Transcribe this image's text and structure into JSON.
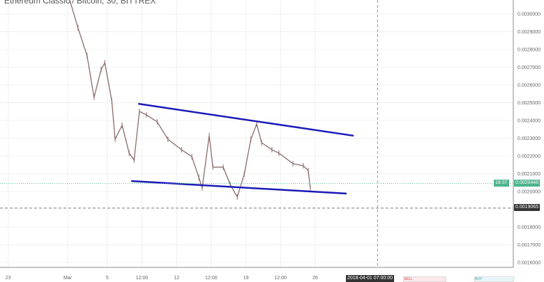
{
  "title": "Ethereum Classic / Bitcoin, 30, BITTREX",
  "chart_data": {
    "type": "candlestick",
    "title": "Ethereum Classic / Bitcoin, 30, BITTREX",
    "ylim": [
      0.00155,
      0.00308
    ],
    "y_ticks": [
      "0.0030000",
      "0.0029000",
      "0.0028000",
      "0.0027000",
      "0.0026000",
      "0.0025000",
      "0.0024000",
      "0.0023000",
      "0.0022000",
      "0.0021000",
      "0.0020000",
      "0.0018000",
      "0.0017000",
      "0.0016000"
    ],
    "x_ticks": [
      {
        "label": "23",
        "t": "2018-02-23T00:00"
      },
      {
        "label": "Mar",
        "t": "2018-03-01T00:00"
      },
      {
        "label": "5",
        "t": "2018-03-05T00:00"
      },
      {
        "label": "12:00",
        "t": "2018-03-08T12:00"
      },
      {
        "label": "12",
        "t": "2018-03-12T00:00"
      },
      {
        "label": "12:00",
        "t": "2018-03-15T12:00"
      },
      {
        "label": "19",
        "t": "2018-03-19T00:00"
      },
      {
        "label": "12:00",
        "t": "2018-03-22T12:00"
      },
      {
        "label": "26",
        "t": "2018-03-26T00:00"
      }
    ],
    "grid": true,
    "series": [
      {
        "color": "#8a6b6b",
        "points": [
          [
            "2018-03-01T05:00",
            0.003078
          ],
          [
            "2018-03-02T01:00",
            0.002922
          ],
          [
            "2018-03-02T23:00",
            0.002765
          ],
          [
            "2018-03-03T16:00",
            0.00253
          ],
          [
            "2018-03-04T09:00",
            0.002686
          ],
          [
            "2018-03-04T18:00",
            0.002725
          ],
          [
            "2018-03-05T11:00",
            0.00251
          ],
          [
            "2018-03-05T19:00",
            0.002294
          ],
          [
            "2018-03-06T12:00",
            0.002373
          ],
          [
            "2018-03-07T05:00",
            0.002216
          ],
          [
            "2018-03-07T17:00",
            0.002177
          ],
          [
            "2018-03-08T06:00",
            0.002451
          ],
          [
            "2018-03-08T23:00",
            0.002431
          ],
          [
            "2018-03-10T01:00",
            0.002392
          ],
          [
            "2018-03-11T03:00",
            0.002294
          ],
          [
            "2018-03-12T12:00",
            0.002235
          ],
          [
            "2018-03-13T13:00",
            0.002196
          ],
          [
            "2018-03-14T06:00",
            0.002078
          ],
          [
            "2018-03-14T14:00",
            0.00202
          ],
          [
            "2018-03-15T07:00",
            0.002314
          ],
          [
            "2018-03-15T16:00",
            0.002137
          ],
          [
            "2018-03-16T17:00",
            0.002137
          ],
          [
            "2018-03-17T10:00",
            0.002039
          ],
          [
            "2018-03-18T03:00",
            0.001969
          ],
          [
            "2018-03-18T20:00",
            0.002098
          ],
          [
            "2018-03-19T12:00",
            0.002294
          ],
          [
            "2018-03-20T02:00",
            0.00238
          ],
          [
            "2018-03-20T14:00",
            0.002275
          ],
          [
            "2018-03-21T15:00",
            0.002235
          ],
          [
            "2018-03-22T08:00",
            0.002216
          ],
          [
            "2018-03-23T18:00",
            0.002157
          ],
          [
            "2018-03-24T19:00",
            0.002145
          ],
          [
            "2018-03-25T07:00",
            0.002118
          ],
          [
            "2018-03-25T12:00",
            0.00202
          ]
        ]
      }
    ],
    "trendlines": [
      {
        "color": "#1a1ab8",
        "from": [
          "2018-03-08T03:00",
          0.002494
        ],
        "to": [
          "2018-03-29T21:00",
          0.002314
        ]
      },
      {
        "color": "#1a1ab8",
        "from": [
          "2018-03-07T10:00",
          0.002059
        ],
        "to": [
          "2018-03-29T04:00",
          0.001988
        ]
      }
    ],
    "current_price": "0.0020446",
    "countdown": "18:37",
    "current_color": "#4db38c",
    "crosshair_price": "0.0019065",
    "crosshair_time": "2018-04-01 07:00:00",
    "crosshair_t": "2018-04-01T07:00"
  },
  "panels": {
    "sell": "SELL",
    "buy": "BUY"
  }
}
